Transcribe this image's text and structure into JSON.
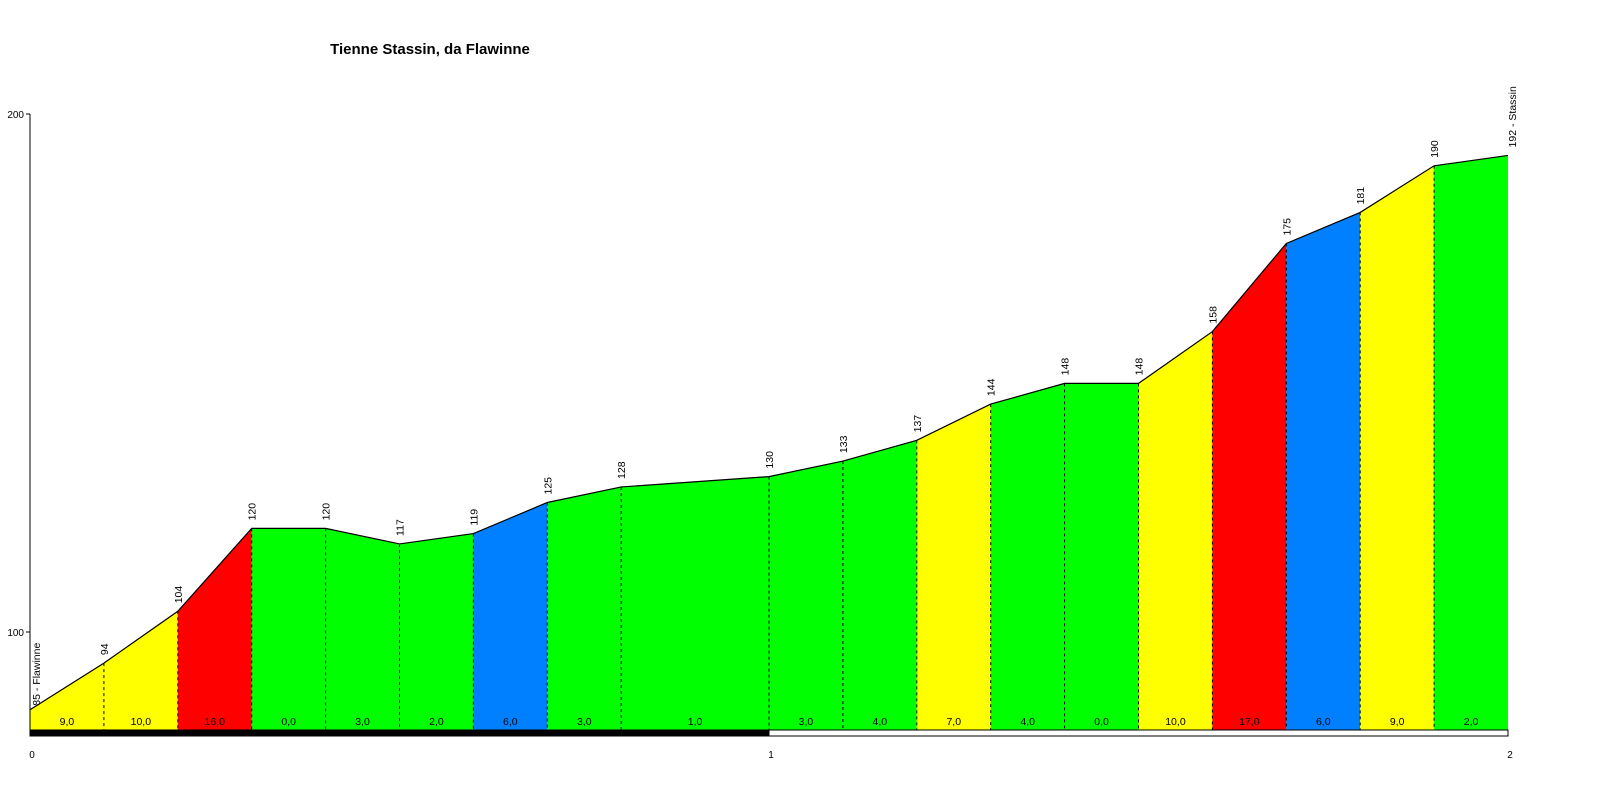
{
  "chart_data": {
    "type": "area",
    "title": "Tienne Stassin, da Flawinne",
    "xlabel": "",
    "ylabel": "",
    "xlim": [
      0,
      2
    ],
    "ylim": [
      80,
      200
    ],
    "x_ticks": [
      "0",
      "1",
      "2"
    ],
    "y_ticks": [
      "100",
      "200"
    ],
    "start_label": "85 - Flawinne",
    "end_label": "192 - Stassin",
    "points": [
      {
        "x": 0.0,
        "y": 85,
        "label": ""
      },
      {
        "x": 0.1,
        "y": 94,
        "label": "94"
      },
      {
        "x": 0.2,
        "y": 104,
        "label": "104"
      },
      {
        "x": 0.3,
        "y": 120,
        "label": "120"
      },
      {
        "x": 0.4,
        "y": 120,
        "label": "120"
      },
      {
        "x": 0.5,
        "y": 117,
        "label": "117"
      },
      {
        "x": 0.6,
        "y": 119,
        "label": "119"
      },
      {
        "x": 0.7,
        "y": 125,
        "label": "125"
      },
      {
        "x": 0.8,
        "y": 128,
        "label": "128"
      },
      {
        "x": 1.0,
        "y": 130,
        "label": "130"
      },
      {
        "x": 1.1,
        "y": 133,
        "label": "133"
      },
      {
        "x": 1.2,
        "y": 137,
        "label": "137"
      },
      {
        "x": 1.3,
        "y": 144,
        "label": "144"
      },
      {
        "x": 1.4,
        "y": 148,
        "label": "148"
      },
      {
        "x": 1.5,
        "y": 148,
        "label": "148"
      },
      {
        "x": 1.6,
        "y": 158,
        "label": "158"
      },
      {
        "x": 1.7,
        "y": 175,
        "label": "175"
      },
      {
        "x": 1.8,
        "y": 181,
        "label": "181"
      },
      {
        "x": 1.9,
        "y": 190,
        "label": "190"
      },
      {
        "x": 2.0,
        "y": 192,
        "label": ""
      }
    ],
    "segments": [
      {
        "grade": "9,0",
        "color": "#FFFF00"
      },
      {
        "grade": "10,0",
        "color": "#FFFF00"
      },
      {
        "grade": "16,0",
        "color": "#FF0000"
      },
      {
        "grade": "0,0",
        "color": "#00FF00"
      },
      {
        "grade": "3,0",
        "color": "#00FF00"
      },
      {
        "grade": "2,0",
        "color": "#00FF00"
      },
      {
        "grade": "6,0",
        "color": "#0080FF"
      },
      {
        "grade": "3,0",
        "color": "#00FF00"
      },
      {
        "grade": "1,0",
        "color": "#00FF00"
      },
      {
        "grade": "3,0",
        "color": "#00FF00"
      },
      {
        "grade": "4,0",
        "color": "#00FF00"
      },
      {
        "grade": "7,0",
        "color": "#FFFF00"
      },
      {
        "grade": "4,0",
        "color": "#00FF00"
      },
      {
        "grade": "0,0",
        "color": "#00FF00"
      },
      {
        "grade": "10,0",
        "color": "#FFFF00"
      },
      {
        "grade": "17,0",
        "color": "#FF0000"
      },
      {
        "grade": "6,0",
        "color": "#0080FF"
      },
      {
        "grade": "9,0",
        "color": "#FFFF00"
      },
      {
        "grade": "2,0",
        "color": "#00FF00"
      }
    ]
  }
}
